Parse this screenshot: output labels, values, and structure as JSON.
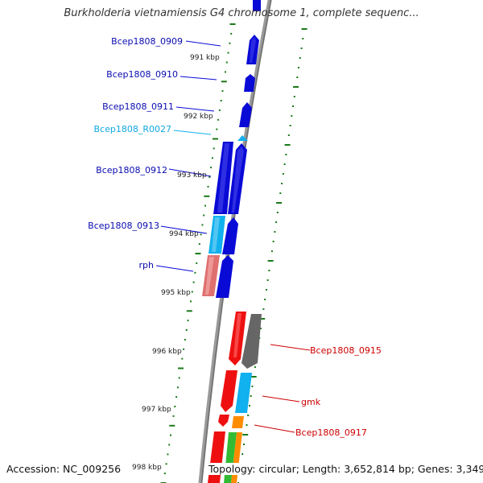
{
  "title": "Burkholderia vietnamiensis G4 chromosome 1, complete sequenc...",
  "footer": {
    "accession": "Accession: NC_009256",
    "topology": "Topology: circular; Length: 3,652,814 bp; Genes: 3,349"
  },
  "colors": {
    "blue_gene": "#0a0ad6",
    "cyan_gene": "#11b0ee",
    "red_gene": "#ee1010",
    "pink_gene": "#e07070",
    "gray_gene": "#666666",
    "orange_gene": "#ff8c00",
    "green_gene": "#33bb33",
    "tick_green": "#1a7a1a",
    "backbone": "#8a8a8a"
  },
  "kbp_labels": [
    "991 kbp",
    "992 kbp",
    "993 kbp",
    "994 kbp",
    "995 kbp",
    "996 kbp",
    "997 kbp",
    "998 kbp"
  ],
  "gene_labels": {
    "left": [
      "Bcep1808_0909",
      "Bcep1808_0910",
      "Bcep1808_0911",
      "Bcep1808_R0027",
      "Bcep1808_0912",
      "Bcep1808_0913",
      "rph"
    ],
    "right": [
      "Bcep1808_0915",
      "gmk",
      "Bcep1808_0917"
    ]
  }
}
